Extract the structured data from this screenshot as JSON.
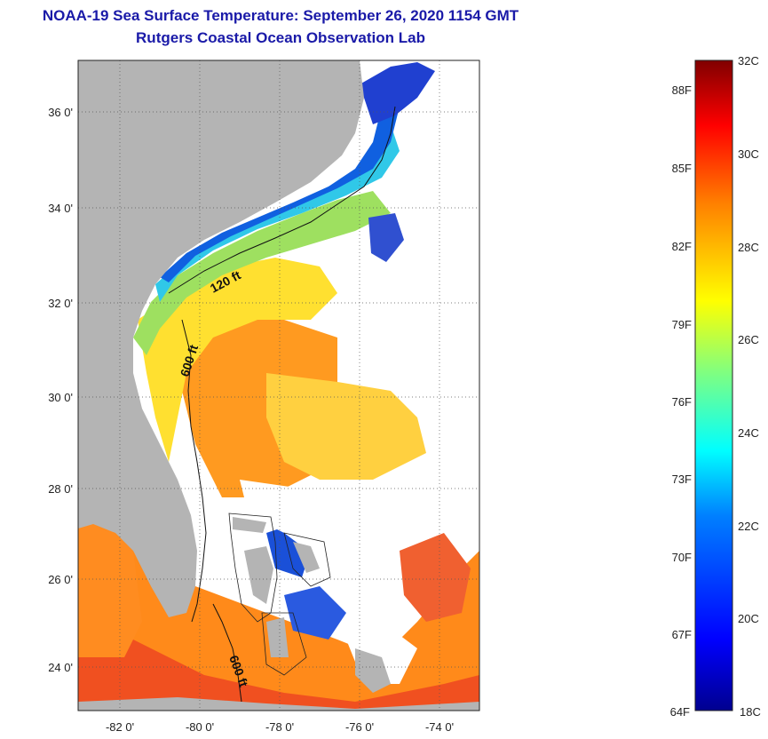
{
  "header": {
    "title": "NOAA-19 Sea Surface Temperature:  September 26, 2020 1154 GMT",
    "subtitle": "Rutgers Coastal Ocean Observation Lab"
  },
  "map": {
    "lat_ticks": [
      "36 0'",
      "34 0'",
      "32 0'",
      "30 0'",
      "28 0'",
      "26 0'",
      "24 0'"
    ],
    "lon_ticks": [
      "-82 0'",
      "-80 0'",
      "-78 0'",
      "-76 0'",
      "-74 0'"
    ],
    "contours": [
      "120 ft",
      "600 ft",
      "600 ft"
    ],
    "land_color": "#b4b4b4",
    "cloud_color": "#ffffff"
  },
  "colorbar": {
    "celsius_labels": [
      "32C",
      "30C",
      "28C",
      "26C",
      "24C",
      "22C",
      "20C",
      "18C"
    ],
    "fahrenheit_labels": [
      "88F",
      "85F",
      "82F",
      "79F",
      "76F",
      "73F",
      "70F",
      "67F",
      "64F"
    ],
    "range_c": [
      18,
      32
    ],
    "colormap": [
      "#00008f",
      "#0000ff",
      "#0080ff",
      "#00ffff",
      "#80ff80",
      "#ffff00",
      "#ff8000",
      "#ff0000",
      "#800000"
    ]
  }
}
